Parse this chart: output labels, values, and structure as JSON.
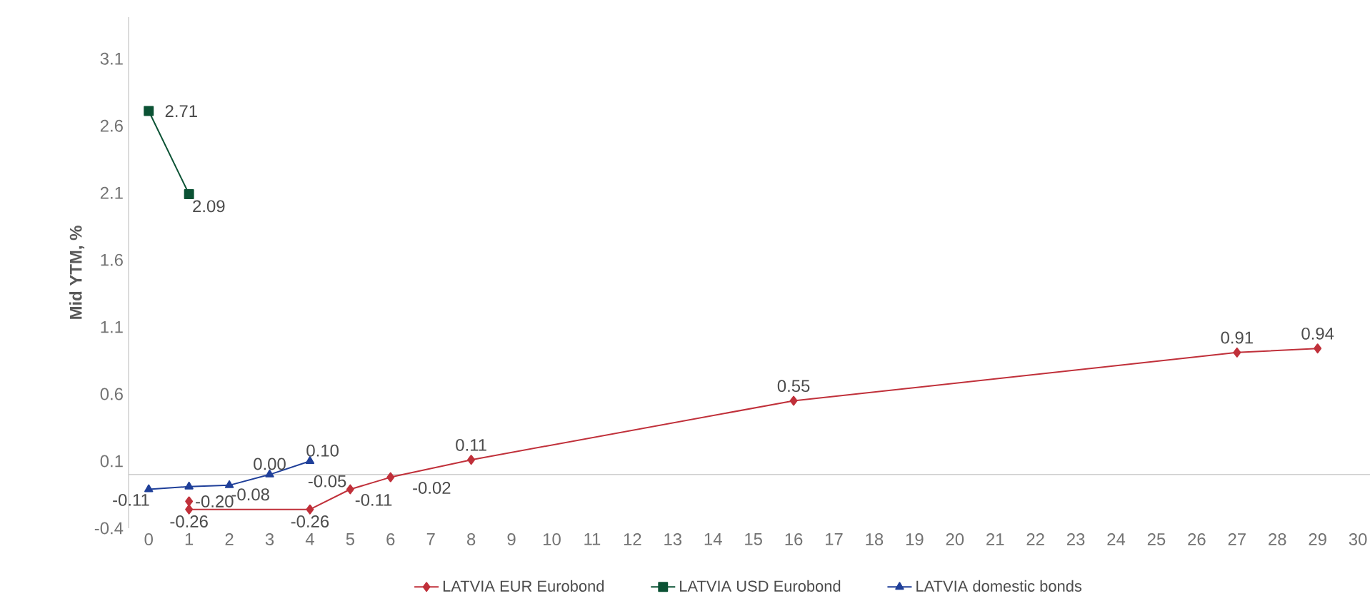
{
  "chart_data": {
    "type": "line",
    "ylabel": "Mid YTM, %",
    "xlim": [
      -0.5,
      30.3
    ],
    "xticks": [
      0,
      1,
      2,
      3,
      4,
      5,
      6,
      7,
      8,
      9,
      10,
      11,
      12,
      13,
      14,
      15,
      16,
      17,
      18,
      19,
      20,
      21,
      22,
      23,
      24,
      25,
      26,
      27,
      28,
      29,
      30
    ],
    "ylim": [
      -0.4,
      3.41
    ],
    "yticks": [
      -0.4,
      0.1,
      0.6,
      1.1,
      1.6,
      2.1,
      2.6,
      3.1
    ],
    "grid": false,
    "legend": "bottom",
    "data_labels": true,
    "series": [
      {
        "name": "LATVIA EUR Eurobond",
        "color": "#c0303a",
        "marker": "diamond",
        "x": [
          1,
          1,
          4,
          5,
          6,
          8,
          16,
          27,
          29
        ],
        "values": [
          -0.2,
          -0.26,
          -0.26,
          -0.11,
          -0.02,
          0.11,
          0.55,
          0.91,
          0.94
        ],
        "value_labels": [
          "-0.20",
          "-0.26",
          "-0.26",
          "-0.11",
          "-0.02",
          "0.11",
          "0.55",
          "0.91",
          "0.94"
        ]
      },
      {
        "name": "LATVIA USD Eurobond",
        "color": "#0b5234",
        "marker": "square",
        "x": [
          0,
          1
        ],
        "values": [
          2.71,
          2.09
        ]
      },
      {
        "name": "LATVIA domestic bonds",
        "color": "#1f3f99",
        "marker": "triangle",
        "x": [
          0,
          1,
          2,
          3,
          4
        ],
        "values": [
          -0.11,
          -0.09,
          -0.08,
          0.0,
          0.1
        ],
        "value_labels": [
          "-0.11",
          null,
          "-0.08",
          "0.00",
          "0.10"
        ]
      }
    ],
    "annotations": [
      "-0.05"
    ]
  }
}
